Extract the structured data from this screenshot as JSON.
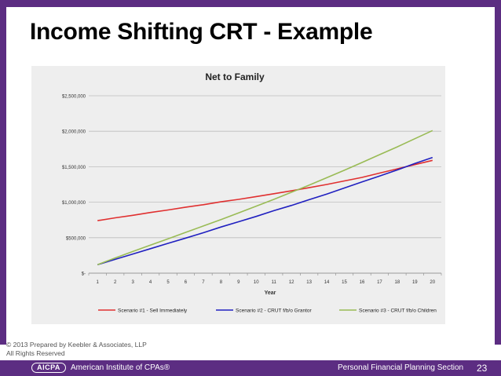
{
  "slide": {
    "title": "Income Shifting CRT - Example",
    "copyright_line1": "© 2013 Prepared by Keebler & Associates, LLP",
    "copyright_line2": "All Rights Reserved",
    "footer_logo": "AICPA",
    "footer_org": "American Institute of CPAs®",
    "footer_section": "Personal Financial Planning Section",
    "page_number": "23"
  },
  "colors": {
    "brand_purple": "#5c2d82"
  },
  "chart_data": {
    "type": "line",
    "title": "Net to Family",
    "xlabel": "Year",
    "ylabel": "",
    "x": [
      1,
      2,
      3,
      4,
      5,
      6,
      7,
      8,
      9,
      10,
      11,
      12,
      13,
      14,
      15,
      16,
      17,
      18,
      19,
      20
    ],
    "ylim": [
      0,
      2500000
    ],
    "yticks": [
      0,
      500000,
      1000000,
      1500000,
      2000000,
      2500000
    ],
    "ytick_labels": [
      "$-",
      "$500,000",
      "$1,000,000",
      "$1,500,000",
      "$2,000,000",
      "$2,500,000"
    ],
    "legend_position": "bottom",
    "grid": true,
    "series": [
      {
        "name": "Scenario #1 - Sell Immediately",
        "color": "#e03030",
        "values": [
          740000,
          780000,
          815000,
          855000,
          890000,
          930000,
          965000,
          1005000,
          1040000,
          1080000,
          1120000,
          1160000,
          1205000,
          1250000,
          1300000,
          1350000,
          1410000,
          1470000,
          1530000,
          1590000
        ]
      },
      {
        "name": "Scenario #2 - CRUT f/b/o Grantor",
        "color": "#2020c0",
        "values": [
          120000,
          195000,
          270000,
          345000,
          420000,
          495000,
          570000,
          650000,
          725000,
          800000,
          880000,
          955000,
          1035000,
          1115000,
          1200000,
          1285000,
          1370000,
          1455000,
          1545000,
          1630000
        ]
      },
      {
        "name": "Scenario #3 - CRUT f/b/o Children",
        "color": "#99bb55",
        "values": [
          120000,
          215000,
          305000,
          395000,
          485000,
          575000,
          665000,
          755000,
          850000,
          945000,
          1040000,
          1140000,
          1240000,
          1345000,
          1450000,
          1560000,
          1670000,
          1780000,
          1895000,
          2010000
        ]
      }
    ]
  }
}
